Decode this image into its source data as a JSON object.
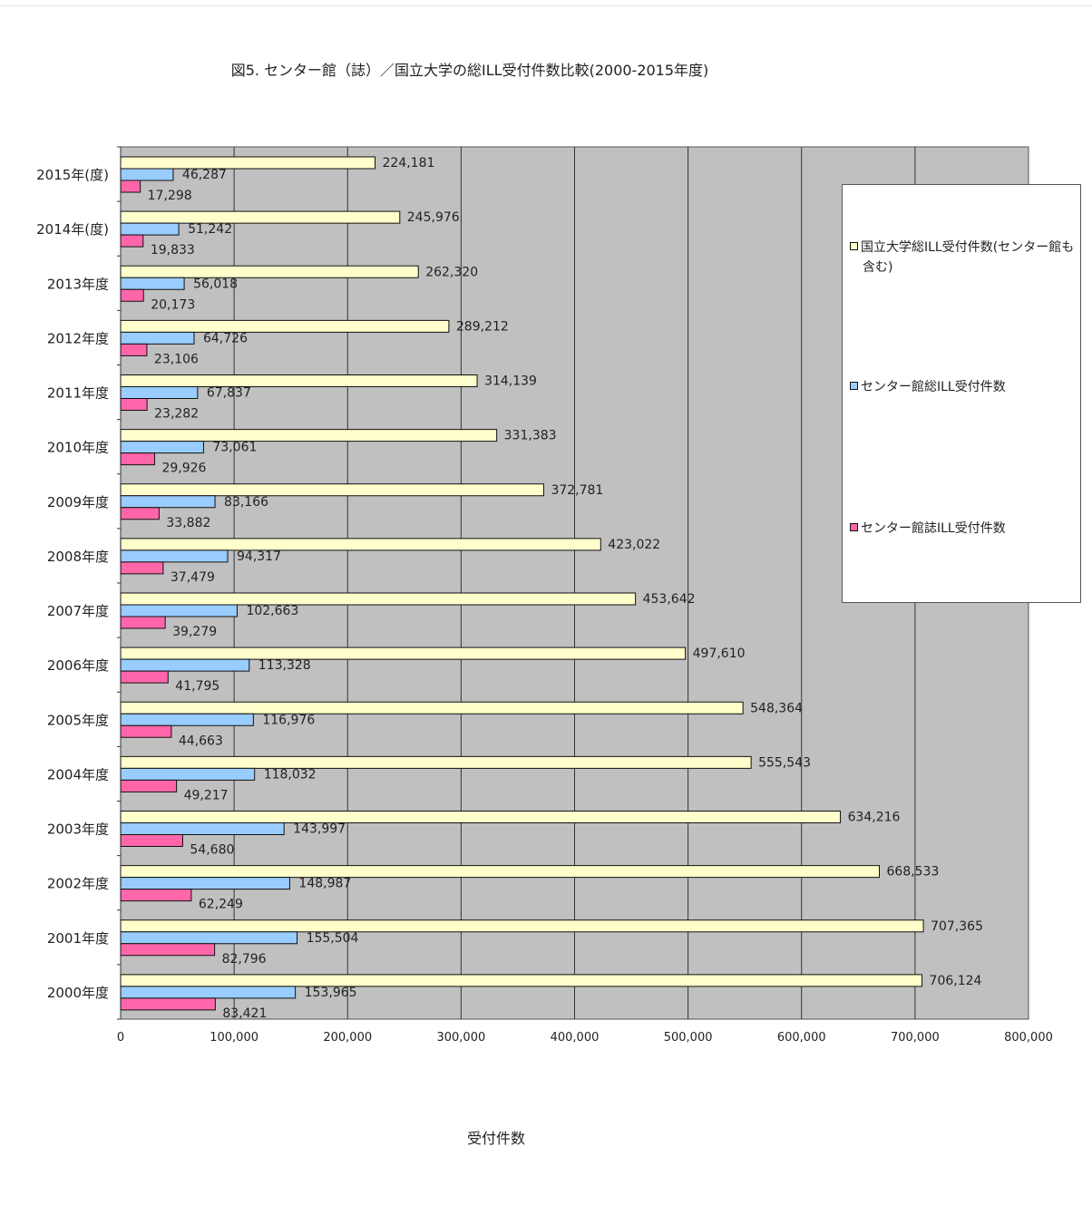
{
  "chart_data": {
    "type": "bar",
    "orientation": "horizontal",
    "title": "図5. センター館（誌）／国立大学の総ILL受付件数比較(2000-2015年度)",
    "xlabel": "受付件数",
    "ylabel": "",
    "xlim": [
      0,
      800000
    ],
    "xticks": [
      "0",
      "100,000",
      "200,000",
      "300,000",
      "400,000",
      "500,000",
      "600,000",
      "700,000",
      "800,000"
    ],
    "grid": true,
    "legend_position": "right",
    "categories": [
      "2015年(度)",
      "2014年(度)",
      "2013年度",
      "2012年度",
      "2011年度",
      "2010年度",
      "2009年度",
      "2008年度",
      "2007年度",
      "2006年度",
      "2005年度",
      "2004年度",
      "2003年度",
      "2002年度",
      "2001年度",
      "2000年度"
    ],
    "series": [
      {
        "name": "国立大学総ILL受付件数(センター館も含む)",
        "color": "#ffffcc",
        "values": [
          224181,
          245976,
          262320,
          289212,
          314139,
          331383,
          372781,
          423022,
          453642,
          497610,
          548364,
          555543,
          634216,
          668533,
          707365,
          706124
        ],
        "labels": [
          "224,181",
          "245,976",
          "262,320",
          "289,212",
          "314,139",
          "331,383",
          "372,781",
          "423,022",
          "453,642",
          "497,610",
          "548,364",
          "555,543",
          "634,216",
          "668,533",
          "707,365",
          "706,124"
        ]
      },
      {
        "name": "センター館総ILL受付件数",
        "color": "#99ccff",
        "values": [
          46287,
          51242,
          56018,
          64726,
          67837,
          73061,
          83166,
          94317,
          102663,
          113328,
          116976,
          118032,
          143997,
          148987,
          155504,
          153965
        ],
        "labels": [
          "46,287",
          "51,242",
          "56,018",
          "64,726",
          "67,837",
          "73,061",
          "83,166",
          "94,317",
          "102,663",
          "113,328",
          "116,976",
          "118,032",
          "143,997",
          "148,987",
          "155,504",
          "153,965"
        ]
      },
      {
        "name": "センター館誌ILL受付件数",
        "color": "#ff66aa",
        "values": [
          17298,
          19833,
          20173,
          23106,
          23282,
          29926,
          33882,
          37479,
          39279,
          41795,
          44663,
          49217,
          54680,
          62249,
          82796,
          83421
        ],
        "labels": [
          "17,298",
          "19,833",
          "20,173",
          "23,106",
          "23,282",
          "29,926",
          "33,882",
          "37,479",
          "39,279",
          "41,795",
          "44,663",
          "49,217",
          "54,680",
          "62,249",
          "82,796",
          "83,421"
        ]
      }
    ]
  },
  "legend": {
    "items": [
      {
        "line1": "国立大学総ILL受付件数(センター館も",
        "line2": "含む)",
        "color": "#ffffcc"
      },
      {
        "line1": "センター館総ILL受付件数",
        "line2": "",
        "color": "#99ccff"
      },
      {
        "line1": "センター館誌ILL受付件数",
        "line2": "",
        "color": "#ff66aa"
      }
    ]
  }
}
